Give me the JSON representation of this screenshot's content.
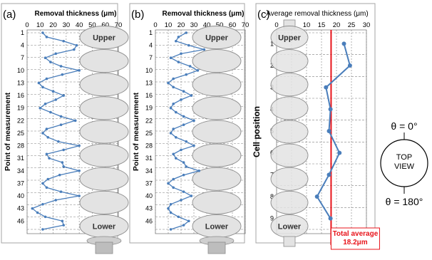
{
  "colors": {
    "series": "#4a7ebb",
    "grid": "#7f7f7f",
    "cell_fill": "#e3e3e3",
    "cell_stroke": "#8c8c8c",
    "average_line": "#e8141b",
    "panel_border": "#a6a6a6"
  },
  "chart_data": [
    {
      "type": "line",
      "panel_label": "(a)",
      "title": "Removal thickness (μm)",
      "xlabel": "",
      "ylabel": "Point of measurement",
      "x_axis_position": "top",
      "xlim": [
        0,
        70
      ],
      "x_ticks": [
        "0",
        "10",
        "20",
        "30",
        "40",
        "50",
        "60",
        "70"
      ],
      "ylim": [
        1,
        48
      ],
      "y_ticks": [
        "1",
        "4",
        "7",
        "10",
        "13",
        "16",
        "19",
        "22",
        "25",
        "28",
        "31",
        "34",
        "37",
        "40",
        "43",
        "46"
      ],
      "grid": true,
      "cell_labels": {
        "top": "Upper",
        "bottom": "Lower"
      },
      "series": [
        {
          "y": [
            1,
            2,
            3,
            4,
            5,
            6,
            7,
            8,
            9,
            10,
            11,
            12,
            13,
            14,
            15,
            16,
            17,
            18,
            19,
            20,
            21,
            22,
            23,
            24,
            25,
            26,
            27,
            28,
            29,
            30,
            31,
            32,
            33,
            34,
            35,
            36,
            37,
            38,
            39,
            40,
            41,
            42,
            43,
            44,
            45,
            46,
            47,
            48
          ],
          "x": [
            12,
            15,
            28,
            38,
            36,
            22,
            14,
            18,
            26,
            40,
            27,
            15,
            9,
            12,
            20,
            28,
            22,
            14,
            10,
            18,
            26,
            37,
            26,
            15,
            12,
            16,
            24,
            40,
            28,
            15,
            17,
            27,
            28,
            40,
            25,
            16,
            12,
            15,
            26,
            40,
            22,
            12,
            4,
            8,
            14,
            27,
            28,
            12
          ]
        }
      ]
    },
    {
      "type": "line",
      "panel_label": "(b)",
      "title": "Removal thickness (μm)",
      "xlabel": "",
      "ylabel": "Point of measurement",
      "x_axis_position": "top",
      "xlim": [
        0,
        70
      ],
      "x_ticks": [
        "0",
        "10",
        "20",
        "30",
        "40",
        "50",
        "60",
        "70"
      ],
      "ylim": [
        1,
        48
      ],
      "y_ticks": [
        "1",
        "4",
        "7",
        "10",
        "13",
        "16",
        "19",
        "22",
        "25",
        "28",
        "31",
        "34",
        "37",
        "40",
        "43",
        "46"
      ],
      "grid": true,
      "cell_labels": {
        "top": "Upper",
        "bottom": "Lower"
      },
      "series": [
        {
          "y": [
            1,
            2,
            3,
            4,
            5,
            6,
            7,
            8,
            9,
            10,
            11,
            12,
            13,
            14,
            15,
            16,
            17,
            18,
            19,
            20,
            21,
            22,
            23,
            24,
            25,
            26,
            27,
            28,
            29,
            30,
            31,
            32,
            33,
            34,
            35,
            36,
            37,
            38,
            39,
            40,
            41,
            42,
            43,
            44,
            45,
            46,
            47,
            48
          ],
          "x": [
            24,
            18,
            16,
            26,
            38,
            20,
            12,
            18,
            27,
            33,
            24,
            14,
            10,
            14,
            22,
            28,
            20,
            14,
            12,
            16,
            22,
            30,
            22,
            14,
            12,
            16,
            24,
            30,
            20,
            14,
            16,
            22,
            24,
            34,
            22,
            14,
            10,
            14,
            22,
            28,
            20,
            12,
            10,
            12,
            18,
            26,
            22,
            12
          ]
        }
      ]
    },
    {
      "type": "line",
      "panel_label": "(c)",
      "title": "Average removal thickness (μm)",
      "xlabel": "",
      "ylabel": "Cell position",
      "x_axis_position": "top",
      "xlim": [
        0,
        30
      ],
      "x_ticks": [
        "0",
        "5",
        "10",
        "15",
        "20",
        "25",
        "30"
      ],
      "ylim": [
        0.5,
        9.5
      ],
      "y_ticks": [
        "1",
        "2",
        "3",
        "4",
        "5",
        "6",
        "7",
        "8",
        "9"
      ],
      "grid": true,
      "cell_labels": {
        "top": "Upper",
        "bottom": "Lower"
      },
      "series": [
        {
          "y": [
            1,
            2,
            3,
            4,
            5,
            6,
            7,
            8,
            9
          ],
          "x": [
            22.5,
            24.5,
            16.5,
            18.0,
            17.5,
            21.0,
            17.5,
            13.5,
            18.0
          ]
        }
      ],
      "average_line": {
        "value": 18.2,
        "label": "Total average\n18.2μm"
      }
    }
  ],
  "orientation_legend": {
    "top_label": "θ = 0°",
    "center_label": "TOP\nVIEW",
    "bottom_label": "θ = 180°"
  }
}
